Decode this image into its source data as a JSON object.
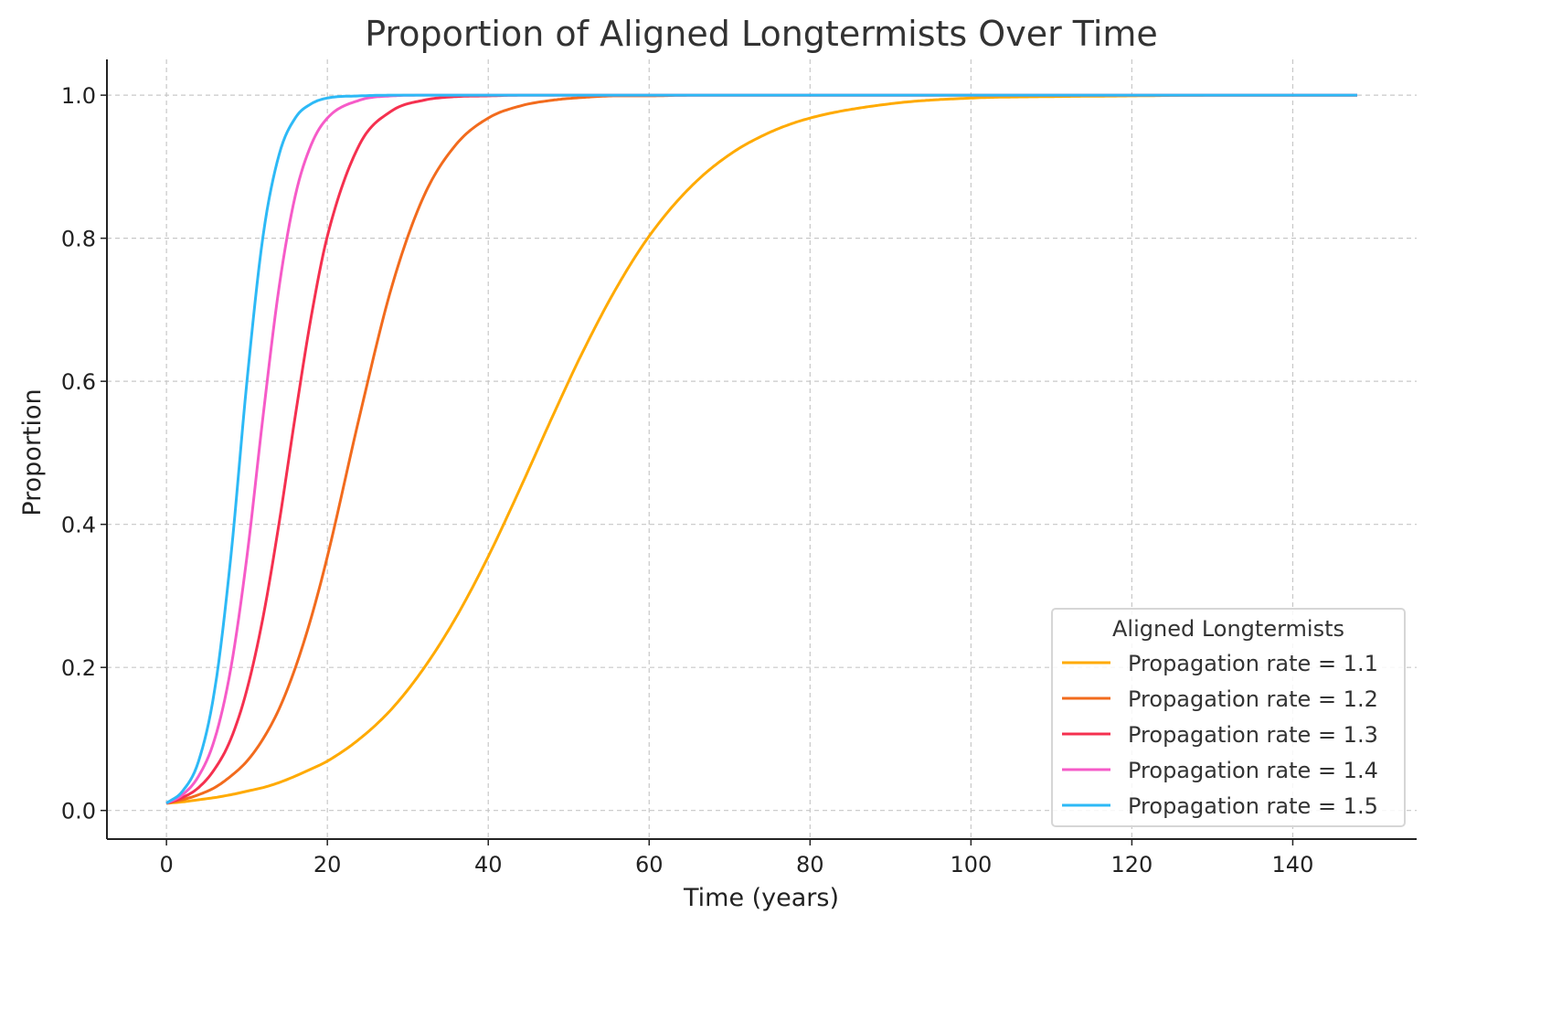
{
  "chart_data": {
    "type": "line",
    "title": "Proportion of Aligned Longtermists Over Time",
    "xlabel": "Time (years)",
    "ylabel": "Proportion",
    "xlim": [
      -7.4,
      155.4
    ],
    "ylim": [
      -0.04,
      1.05
    ],
    "xticks": [
      "0",
      "20",
      "40",
      "60",
      "80",
      "100",
      "120",
      "140"
    ],
    "yticks": [
      "0.0",
      "0.2",
      "0.4",
      "0.6",
      "0.8",
      "1.0"
    ],
    "grid": true,
    "legend": {
      "title": "Aligned Longtermists",
      "placement": "bottom-right"
    },
    "x": [
      0,
      2,
      4,
      6,
      8,
      10,
      12,
      14,
      16,
      18,
      20,
      24,
      28,
      32,
      36,
      40,
      44,
      48,
      52,
      56,
      60,
      65,
      70,
      75,
      80,
      90,
      100,
      110,
      120,
      130,
      140,
      148
    ],
    "series": [
      {
        "name": "Propagation rate = 1.1",
        "color": "#FFAA00",
        "values": [
          0.01,
          0.012,
          0.015,
          0.018,
          0.022,
          0.027,
          0.032,
          0.039,
          0.048,
          0.058,
          0.069,
          0.1,
          0.142,
          0.199,
          0.27,
          0.355,
          0.451,
          0.551,
          0.647,
          0.732,
          0.803,
          0.87,
          0.917,
          0.948,
          0.968,
          0.988,
          0.996,
          0.998,
          0.999,
          1.0,
          1.0,
          1.0
        ]
      },
      {
        "name": "Propagation rate = 1.2",
        "color": "#F26B1D",
        "values": [
          0.01,
          0.015,
          0.022,
          0.032,
          0.048,
          0.069,
          0.1,
          0.142,
          0.199,
          0.27,
          0.355,
          0.551,
          0.732,
          0.859,
          0.931,
          0.968,
          0.985,
          0.993,
          0.997,
          0.999,
          0.999,
          1.0,
          1.0,
          1.0,
          1.0,
          1.0,
          1.0,
          1.0,
          1.0,
          1.0,
          1.0,
          1.0
        ]
      },
      {
        "name": "Propagation rate = 1.3",
        "color": "#F5304F",
        "values": [
          0.01,
          0.018,
          0.032,
          0.058,
          0.1,
          0.169,
          0.27,
          0.402,
          0.551,
          0.691,
          0.803,
          0.931,
          0.978,
          0.993,
          0.998,
          0.999,
          1.0,
          1.0,
          1.0,
          1.0,
          1.0,
          1.0,
          1.0,
          1.0,
          1.0,
          1.0,
          1.0,
          1.0,
          1.0,
          1.0,
          1.0,
          1.0
        ]
      },
      {
        "name": "Propagation rate = 1.4",
        "color": "#F65BC8",
        "values": [
          0.01,
          0.022,
          0.048,
          0.1,
          0.199,
          0.355,
          0.551,
          0.732,
          0.859,
          0.931,
          0.968,
          0.993,
          0.999,
          1.0,
          1.0,
          1.0,
          1.0,
          1.0,
          1.0,
          1.0,
          1.0,
          1.0,
          1.0,
          1.0,
          1.0,
          1.0,
          1.0,
          1.0,
          1.0,
          1.0,
          1.0,
          1.0
        ]
      },
      {
        "name": "Propagation rate = 1.5",
        "color": "#2DB9F6",
        "values": [
          0.01,
          0.027,
          0.069,
          0.169,
          0.355,
          0.6,
          0.803,
          0.917,
          0.968,
          0.988,
          0.996,
          0.999,
          1.0,
          1.0,
          1.0,
          1.0,
          1.0,
          1.0,
          1.0,
          1.0,
          1.0,
          1.0,
          1.0,
          1.0,
          1.0,
          1.0,
          1.0,
          1.0,
          1.0,
          1.0,
          1.0,
          1.0
        ]
      }
    ]
  }
}
